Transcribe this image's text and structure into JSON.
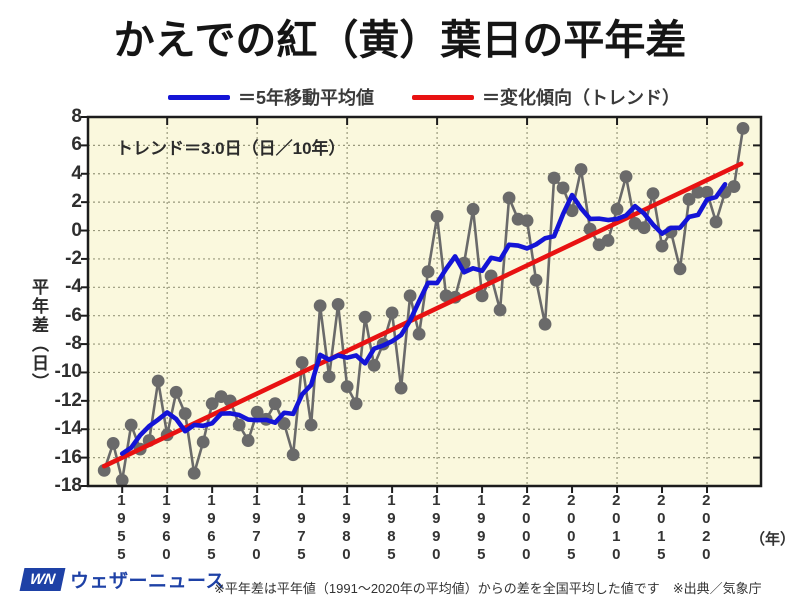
{
  "title": "かえでの紅（黄）葉日の平年差",
  "legend": {
    "items": [
      {
        "label": "＝5年移動平均値",
        "color": "#1414d6"
      },
      {
        "label": "＝変化傾向（トレンド）",
        "color": "#e81212"
      }
    ]
  },
  "chart_data": {
    "type": "line",
    "title": "かえでの紅（黄）葉日の平年差",
    "annotation": "トレンド＝3.0日（日／10年）",
    "ylabel": "平年差（日）",
    "x_unit_label": "（年）",
    "ylim": [
      -18,
      8
    ],
    "xlim": [
      1951.2,
      2026
    ],
    "grid": "dotted",
    "plot_bg": "#faf8dd",
    "grid_color": "#98987c",
    "y_ticks": [
      8,
      6,
      4,
      2,
      0,
      -2,
      -4,
      -6,
      -8,
      -10,
      -12,
      -14,
      -16,
      -18
    ],
    "x_ticks": [
      1955,
      1960,
      1965,
      1970,
      1975,
      1980,
      1985,
      1990,
      1995,
      2000,
      2005,
      2010,
      2015,
      2020
    ],
    "x_gridlines": [
      1960,
      1970,
      1980,
      1990,
      2000,
      2010,
      2020
    ],
    "years": [
      1953,
      1954,
      1955,
      1956,
      1957,
      1958,
      1959,
      1960,
      1961,
      1962,
      1963,
      1964,
      1965,
      1966,
      1967,
      1968,
      1969,
      1970,
      1971,
      1972,
      1973,
      1974,
      1975,
      1976,
      1977,
      1978,
      1979,
      1980,
      1981,
      1982,
      1983,
      1984,
      1985,
      1986,
      1987,
      1988,
      1989,
      1990,
      1991,
      1992,
      1993,
      1994,
      1995,
      1996,
      1997,
      1998,
      1999,
      2000,
      2001,
      2002,
      2003,
      2004,
      2005,
      2006,
      2007,
      2008,
      2009,
      2010,
      2011,
      2012,
      2013,
      2014,
      2015,
      2016,
      2017,
      2018,
      2019,
      2020,
      2021,
      2022,
      2023,
      2024
    ],
    "series": [
      {
        "name": "各年の平年差",
        "type": "scatter-line",
        "color": "#6a6a6a",
        "values": [
          -16.9,
          -15.0,
          -17.6,
          -13.7,
          -15.4,
          -14.8,
          -10.6,
          -14.4,
          -11.4,
          -12.9,
          -17.1,
          -14.9,
          -12.2,
          -11.7,
          -12.0,
          -13.7,
          -14.8,
          -12.8,
          -13.3,
          -12.2,
          -13.6,
          -15.8,
          -9.3,
          -13.7,
          -5.3,
          -10.3,
          -5.2,
          -11.0,
          -12.2,
          -6.1,
          -9.5,
          -8.0,
          -5.8,
          -11.1,
          -4.6,
          -7.3,
          -2.9,
          1.0,
          -4.6,
          -4.7,
          -2.3,
          1.5,
          -4.6,
          -3.2,
          -5.6,
          2.3,
          0.8,
          0.7,
          -3.5,
          -6.6,
          3.7,
          3.0,
          1.4,
          4.3,
          0.1,
          -1.0,
          -0.7,
          1.5,
          3.8,
          0.5,
          0.2,
          2.6,
          -1.1,
          -0.1,
          -2.7,
          2.2,
          2.7,
          2.7,
          0.6,
          2.7,
          3.1,
          7.2
        ]
      },
      {
        "name": "5年移動平均値",
        "type": "line",
        "color": "#1414d6",
        "window": 5,
        "derived_from": "各年の平年差"
      },
      {
        "name": "変化傾向（トレンド）",
        "type": "trend-line",
        "color": "#e81212",
        "slope_days_per_10yr": 3.0,
        "start": [
          1953,
          -16.6
        ],
        "end": [
          2023.8,
          4.7
        ]
      }
    ]
  },
  "footer": {
    "logo_mark": "WN",
    "logo_text": "ウェザーニュース",
    "note": "※平年差は平年値（1991～2020年の平均値）からの差を全国平均した値です　※出典／気象庁"
  }
}
